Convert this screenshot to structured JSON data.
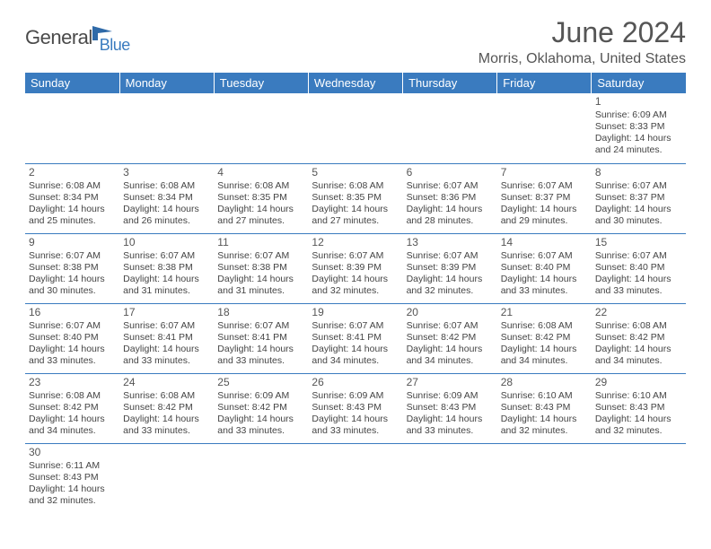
{
  "logo": {
    "part1": "General",
    "part2": "Blue"
  },
  "title": "June 2024",
  "location": "Morris, Oklahoma, United States",
  "colors": {
    "header_bg": "#3a7bbf",
    "header_text": "#ffffff",
    "border": "#3a7bbf",
    "text": "#444444",
    "title_text": "#555555"
  },
  "weekdays": [
    "Sunday",
    "Monday",
    "Tuesday",
    "Wednesday",
    "Thursday",
    "Friday",
    "Saturday"
  ],
  "first_weekday_index": 6,
  "days": [
    {
      "n": 1,
      "sunrise": "6:09 AM",
      "sunset": "8:33 PM",
      "dl_h": 14,
      "dl_m": 24
    },
    {
      "n": 2,
      "sunrise": "6:08 AM",
      "sunset": "8:34 PM",
      "dl_h": 14,
      "dl_m": 25
    },
    {
      "n": 3,
      "sunrise": "6:08 AM",
      "sunset": "8:34 PM",
      "dl_h": 14,
      "dl_m": 26
    },
    {
      "n": 4,
      "sunrise": "6:08 AM",
      "sunset": "8:35 PM",
      "dl_h": 14,
      "dl_m": 27
    },
    {
      "n": 5,
      "sunrise": "6:08 AM",
      "sunset": "8:35 PM",
      "dl_h": 14,
      "dl_m": 27
    },
    {
      "n": 6,
      "sunrise": "6:07 AM",
      "sunset": "8:36 PM",
      "dl_h": 14,
      "dl_m": 28
    },
    {
      "n": 7,
      "sunrise": "6:07 AM",
      "sunset": "8:37 PM",
      "dl_h": 14,
      "dl_m": 29
    },
    {
      "n": 8,
      "sunrise": "6:07 AM",
      "sunset": "8:37 PM",
      "dl_h": 14,
      "dl_m": 30
    },
    {
      "n": 9,
      "sunrise": "6:07 AM",
      "sunset": "8:38 PM",
      "dl_h": 14,
      "dl_m": 30
    },
    {
      "n": 10,
      "sunrise": "6:07 AM",
      "sunset": "8:38 PM",
      "dl_h": 14,
      "dl_m": 31
    },
    {
      "n": 11,
      "sunrise": "6:07 AM",
      "sunset": "8:38 PM",
      "dl_h": 14,
      "dl_m": 31
    },
    {
      "n": 12,
      "sunrise": "6:07 AM",
      "sunset": "8:39 PM",
      "dl_h": 14,
      "dl_m": 32
    },
    {
      "n": 13,
      "sunrise": "6:07 AM",
      "sunset": "8:39 PM",
      "dl_h": 14,
      "dl_m": 32
    },
    {
      "n": 14,
      "sunrise": "6:07 AM",
      "sunset": "8:40 PM",
      "dl_h": 14,
      "dl_m": 33
    },
    {
      "n": 15,
      "sunrise": "6:07 AM",
      "sunset": "8:40 PM",
      "dl_h": 14,
      "dl_m": 33
    },
    {
      "n": 16,
      "sunrise": "6:07 AM",
      "sunset": "8:40 PM",
      "dl_h": 14,
      "dl_m": 33
    },
    {
      "n": 17,
      "sunrise": "6:07 AM",
      "sunset": "8:41 PM",
      "dl_h": 14,
      "dl_m": 33
    },
    {
      "n": 18,
      "sunrise": "6:07 AM",
      "sunset": "8:41 PM",
      "dl_h": 14,
      "dl_m": 33
    },
    {
      "n": 19,
      "sunrise": "6:07 AM",
      "sunset": "8:41 PM",
      "dl_h": 14,
      "dl_m": 34
    },
    {
      "n": 20,
      "sunrise": "6:07 AM",
      "sunset": "8:42 PM",
      "dl_h": 14,
      "dl_m": 34
    },
    {
      "n": 21,
      "sunrise": "6:08 AM",
      "sunset": "8:42 PM",
      "dl_h": 14,
      "dl_m": 34
    },
    {
      "n": 22,
      "sunrise": "6:08 AM",
      "sunset": "8:42 PM",
      "dl_h": 14,
      "dl_m": 34
    },
    {
      "n": 23,
      "sunrise": "6:08 AM",
      "sunset": "8:42 PM",
      "dl_h": 14,
      "dl_m": 34
    },
    {
      "n": 24,
      "sunrise": "6:08 AM",
      "sunset": "8:42 PM",
      "dl_h": 14,
      "dl_m": 33
    },
    {
      "n": 25,
      "sunrise": "6:09 AM",
      "sunset": "8:42 PM",
      "dl_h": 14,
      "dl_m": 33
    },
    {
      "n": 26,
      "sunrise": "6:09 AM",
      "sunset": "8:43 PM",
      "dl_h": 14,
      "dl_m": 33
    },
    {
      "n": 27,
      "sunrise": "6:09 AM",
      "sunset": "8:43 PM",
      "dl_h": 14,
      "dl_m": 33
    },
    {
      "n": 28,
      "sunrise": "6:10 AM",
      "sunset": "8:43 PM",
      "dl_h": 14,
      "dl_m": 32
    },
    {
      "n": 29,
      "sunrise": "6:10 AM",
      "sunset": "8:43 PM",
      "dl_h": 14,
      "dl_m": 32
    },
    {
      "n": 30,
      "sunrise": "6:11 AM",
      "sunset": "8:43 PM",
      "dl_h": 14,
      "dl_m": 32
    }
  ]
}
